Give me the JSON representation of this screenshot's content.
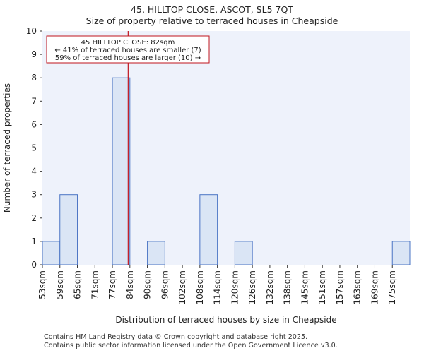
{
  "title_line1": "45, HILLTOP CLOSE, ASCOT, SL5 7QT",
  "title_line2": "Size of property relative to terraced houses in Cheapside",
  "chart_data": {
    "type": "bar",
    "title": "Size of property relative to terraced houses in Cheapside",
    "xlabel": "Distribution of terraced houses by size in Cheapside",
    "ylabel": "Number of terraced properties",
    "categories": [
      "53sqm",
      "59sqm",
      "65sqm",
      "71sqm",
      "77sqm",
      "84sqm",
      "90sqm",
      "96sqm",
      "102sqm",
      "108sqm",
      "114sqm",
      "120sqm",
      "126sqm",
      "132sqm",
      "138sqm",
      "145sqm",
      "151sqm",
      "157sqm",
      "163sqm",
      "169sqm",
      "175sqm"
    ],
    "values": [
      1,
      3,
      0,
      0,
      8,
      0,
      1,
      0,
      0,
      3,
      0,
      1,
      0,
      0,
      0,
      0,
      0,
      0,
      0,
      0,
      1
    ],
    "ylim": [
      0,
      10
    ],
    "yticks": [
      0,
      1,
      2,
      3,
      4,
      5,
      6,
      7,
      8,
      9,
      10
    ],
    "property_marker_index": 4.9,
    "annotation": {
      "line1": "45 HILLTOP CLOSE: 82sqm",
      "line2": "← 41% of terraced houses are smaller (7)",
      "line3": "59% of terraced houses are larger (10) →"
    },
    "colors": {
      "bar_fill": "#dae5f5",
      "bar_edge": "#4a74c4",
      "marker": "#c0141e",
      "plot_bg": "#eef2fb"
    }
  },
  "footer": {
    "line1": "Contains HM Land Registry data © Crown copyright and database right 2025.",
    "line2": "Contains public sector information licensed under the Open Government Licence v3.0."
  }
}
